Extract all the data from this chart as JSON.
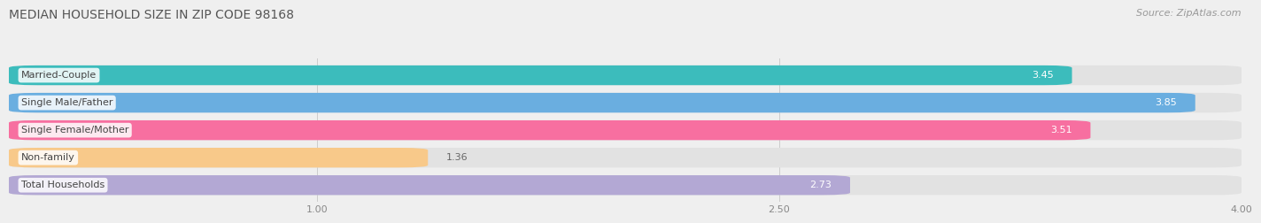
{
  "title": "MEDIAN HOUSEHOLD SIZE IN ZIP CODE 98168",
  "source": "Source: ZipAtlas.com",
  "categories": [
    "Married-Couple",
    "Single Male/Father",
    "Single Female/Mother",
    "Non-family",
    "Total Households"
  ],
  "values": [
    3.45,
    3.85,
    3.51,
    1.36,
    2.73
  ],
  "bar_colors": [
    "#3cbcbc",
    "#6aaee0",
    "#f76fa0",
    "#f8c98a",
    "#b3a8d4"
  ],
  "xlim_min": 0,
  "xlim_max": 4.0,
  "xticks": [
    1.0,
    2.5,
    4.0
  ],
  "xtick_labels": [
    "1.00",
    "2.50",
    "4.00"
  ],
  "title_fontsize": 10,
  "source_fontsize": 8,
  "label_fontsize": 8,
  "value_fontsize": 8,
  "background_color": "#efefef",
  "bar_bg_color": "#e2e2e2",
  "bar_height": 0.72,
  "value_label_color_inside": "#ffffff",
  "value_label_color_outside": "#666666",
  "category_label_color": "#444444",
  "grid_color": "#cccccc",
  "title_color": "#555555",
  "source_color": "#999999"
}
